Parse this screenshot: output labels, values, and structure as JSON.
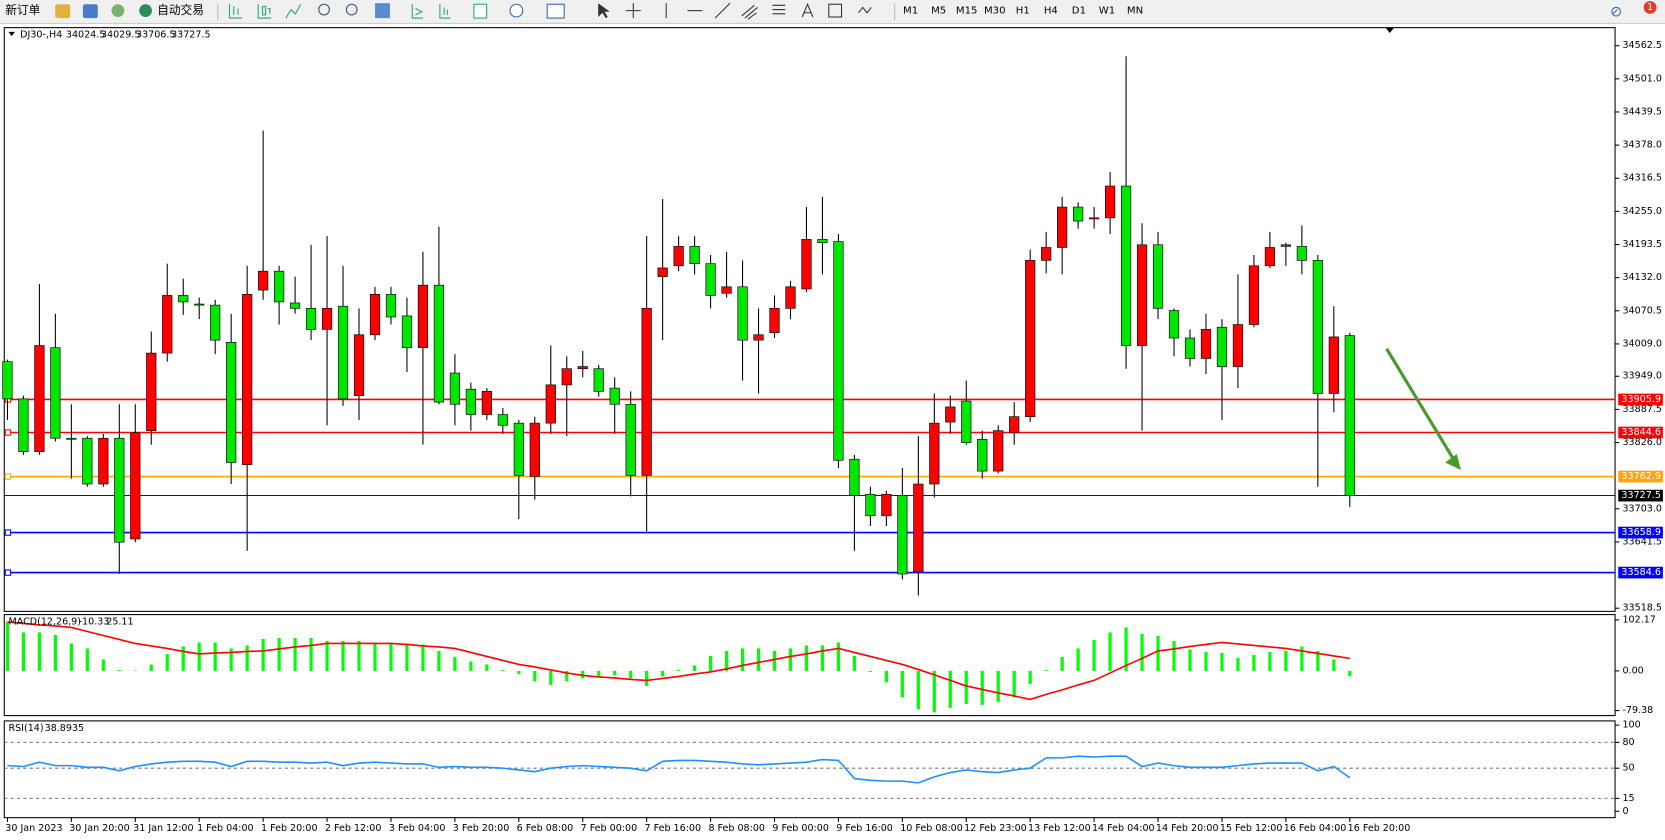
{
  "toolbar": {
    "new_order": "新订单",
    "auto_trade": "自动交易",
    "timeframes": [
      "M1",
      "M5",
      "M15",
      "M30",
      "H1",
      "H4",
      "D1",
      "W1",
      "MN"
    ],
    "notifications": 1
  },
  "chart_data": [
    {
      "type": "candlestick",
      "title": "DJ30-,H4",
      "categories": [
        "30 Jan 2023",
        null,
        null,
        null,
        "30 Jan 20:00",
        null,
        null,
        null,
        "31 Jan 12:00",
        null,
        null,
        null,
        "1 Feb 04:00",
        null,
        null,
        null,
        "1 Feb 20:00",
        null,
        null,
        null,
        "2 Feb 12:00",
        null,
        null,
        null,
        "3 Feb 04:00",
        null,
        null,
        null,
        "3 Feb 20:00",
        null,
        null,
        null,
        "6 Feb 08:00",
        null,
        null,
        null,
        "7 Feb 00:00",
        null,
        null,
        null,
        "7 Feb 16:00",
        null,
        null,
        null,
        "8 Feb 08:00",
        null,
        null,
        null,
        "9 Feb 00:00",
        null,
        null,
        null,
        "9 Feb 16:00",
        null,
        null,
        null,
        "10 Feb 08:00",
        null,
        null,
        null,
        "12 Feb 23:00",
        null,
        null,
        null,
        "13 Feb 12:00",
        null,
        null,
        null,
        "14 Feb 04:00",
        null,
        null,
        null,
        "14 Feb 20:00",
        null,
        null,
        null,
        "15 Feb 12:00",
        null,
        null,
        null,
        "16 Feb 04:00",
        null,
        null,
        null,
        "16 Feb 20:00"
      ],
      "open": [
        33976,
        33907,
        33809,
        34002,
        33834,
        33834,
        33749,
        33834,
        33647,
        33848,
        33992,
        34099,
        34083,
        34081,
        34012,
        33785,
        34109,
        34144,
        34085,
        34075,
        34036,
        34079,
        33913,
        34026,
        34101,
        34061,
        34002,
        34118,
        33955,
        33925,
        33878,
        33878,
        33862,
        33763,
        33862,
        33933,
        33963,
        33963,
        33927,
        33897,
        33765,
        34134,
        34154,
        34190,
        34158,
        34103,
        34115,
        34016,
        34030,
        34075,
        34111,
        34203,
        34199,
        33795,
        33730,
        33690,
        33728,
        33586,
        33749,
        33864,
        33903,
        33832,
        33773,
        33844,
        33874,
        34164,
        34188,
        34263,
        34241,
        34243,
        34302,
        34006,
        34193,
        34071,
        34020,
        33982,
        34040,
        33967,
        34045,
        34154,
        34190,
        34190,
        34164,
        33917,
        34024.5
      ],
      "high": [
        33980,
        33913,
        34120,
        34065,
        33897,
        33838,
        33842,
        33897,
        33897,
        34032,
        34158,
        34130,
        34095,
        34091,
        34065,
        34154,
        34405,
        34154,
        34134,
        34193,
        34209,
        34154,
        34075,
        34115,
        34115,
        34095,
        34180,
        34227,
        33990,
        33937,
        33927,
        33890,
        33868,
        33874,
        34006,
        33986,
        33996,
        33970,
        33947,
        33921,
        34209,
        34278,
        34209,
        34209,
        34174,
        34180,
        34164,
        34075,
        34099,
        34126,
        34263,
        34282,
        34213,
        33803,
        33744,
        33736,
        33779,
        33838,
        33917,
        33913,
        33941,
        33848,
        33858,
        33901,
        34184,
        34217,
        34282,
        34272,
        34263,
        34328,
        34543,
        34233,
        34217,
        34075,
        34036,
        34065,
        34055,
        34138,
        34174,
        34217,
        34197,
        34229,
        34174,
        34079,
        34029.5
      ],
      "low": [
        33868,
        33803,
        33803,
        33828,
        33759,
        33744,
        33744,
        33582,
        33641,
        33822,
        33976,
        34063,
        34055,
        33990,
        33749,
        33625,
        34091,
        34045,
        34065,
        34016,
        33858,
        33894,
        33868,
        34016,
        34045,
        33957,
        33822,
        33897,
        33858,
        33848,
        33868,
        33842,
        33684,
        33720,
        33842,
        33838,
        33947,
        33911,
        33842,
        33726,
        33661,
        34016,
        34144,
        34138,
        34075,
        34095,
        33941,
        33917,
        34020,
        34055,
        34105,
        34138,
        33779,
        33625,
        33671,
        33671,
        33572,
        33542,
        33724,
        33842,
        33822,
        33759,
        33769,
        33822,
        33864,
        34140,
        34138,
        34223,
        34223,
        34213,
        33963,
        33848,
        34055,
        33986,
        33967,
        33953,
        33868,
        33927,
        34040,
        34150,
        34154,
        34138,
        33744,
        33882,
        33706.5
      ],
      "close": [
        33907,
        33809,
        34006,
        33834,
        33832,
        33749,
        33834,
        33641,
        33844,
        33992,
        34099,
        34087,
        34081,
        34016,
        33789,
        34101,
        34144,
        34087,
        34075,
        34036,
        34075,
        33907,
        34026,
        34101,
        34059,
        34002,
        34118,
        33901,
        33897,
        33878,
        33921,
        33858,
        33765,
        33862,
        33933,
        33963,
        33967,
        33921,
        33897,
        33765,
        34075,
        34150,
        34190,
        34158,
        34099,
        34115,
        34016,
        34026,
        34075,
        34115,
        34203,
        34197,
        33793,
        33728,
        33690,
        33730,
        33582,
        33749,
        33862,
        33892,
        33826,
        33773,
        33848,
        33874,
        34164,
        34188,
        34263,
        34237,
        34243,
        34302,
        34006,
        34193,
        34075,
        34020,
        33982,
        34036,
        33967,
        34045,
        34154,
        34188,
        34193,
        34164,
        33917,
        34022,
        33727.5
      ],
      "up_color": "#ff0000",
      "down_color": "#00e600",
      "ylim": [
        33512.6,
        34596.0
      ],
      "yticks": [
        34562.5,
        {
          "value": 34501,
          "label": "34501.0"
        },
        34439.5,
        {
          "value": 34378,
          "label": "34378.0"
        },
        34316.5,
        {
          "value": 34255,
          "label": "34255.0"
        },
        34193.5,
        {
          "value": 34132,
          "label": "34132.0"
        },
        34070.5,
        {
          "value": 34009,
          "label": "34009.0"
        },
        {
          "value": 33949,
          "label": "33949.0"
        },
        33887.5,
        {
          "value": 33826,
          "label": "33826.0"
        },
        {
          "value": 33703,
          "label": "33703.0"
        },
        33641.5,
        33518.5
      ],
      "levels": [
        {
          "value": 33905.9,
          "color": "#ff0000"
        },
        {
          "value": 33844.6,
          "color": "#ff0000"
        },
        {
          "value": 33762.9,
          "color": "#ffa500"
        },
        {
          "value": 33658.9,
          "color": "#0000ff"
        },
        {
          "value": 33584.6,
          "color": "#0000ff"
        }
      ],
      "grid": false
    },
    {
      "type": "macd",
      "title": "MACD(12,26,9)",
      "histogram": [
        98,
        77,
        77,
        72,
        55,
        45,
        23,
        2,
        1,
        13,
        34,
        49,
        57,
        57,
        45,
        51,
        64,
        66,
        66,
        66,
        60,
        60,
        60,
        57,
        55,
        55,
        53,
        40,
        28,
        19,
        13,
        2,
        -6,
        -21,
        -28,
        -21,
        -15,
        -11,
        -9,
        -15,
        -30,
        -11,
        2,
        11,
        30,
        40,
        45,
        45,
        40,
        45,
        51,
        51,
        57,
        30,
        -2,
        -23,
        -53,
        -77,
        -83,
        -74,
        -66,
        -68,
        -62,
        -53,
        -26,
        2,
        28,
        45,
        62,
        77,
        87,
        74,
        70,
        60,
        43,
        38,
        36,
        26,
        32,
        38,
        40,
        49,
        40,
        23,
        -10.33
      ],
      "signal": [
        98,
        95,
        92,
        90,
        87,
        79,
        71,
        63,
        55,
        50,
        45,
        39,
        34,
        36,
        37,
        39,
        40,
        44,
        48,
        51,
        55,
        55,
        55,
        55,
        55,
        53,
        50,
        48,
        45,
        37,
        29,
        21,
        13,
        8,
        2,
        -4,
        -9,
        -12,
        -14,
        -17,
        -19,
        -15,
        -11,
        -6,
        -2,
        4,
        11,
        17,
        23,
        29,
        34,
        40,
        45,
        37,
        29,
        21,
        13,
        3,
        -8,
        -19,
        -30,
        -37,
        -44,
        -50,
        -57,
        -47,
        -38,
        -28,
        -19,
        -4,
        11,
        25,
        40,
        44,
        49,
        53,
        57,
        54,
        51,
        48,
        45,
        40,
        35,
        30,
        25.11
      ],
      "histogram_color": "#00ff00",
      "signal_color": "#ff0000",
      "ylim": [
        -89.4,
        112.8
      ],
      "yticks": [
        102.17,
        {
          "value": 0,
          "label": "0.00"
        },
        -79.38
      ]
    },
    {
      "type": "line",
      "title": "RSI(14)",
      "values": [
        53,
        52,
        57,
        53,
        53,
        51,
        51,
        47,
        52,
        55,
        57,
        58,
        58,
        57,
        52,
        58,
        58,
        57,
        57,
        56,
        57,
        53,
        56,
        57,
        56,
        55,
        55,
        51,
        52,
        51,
        51,
        50,
        48,
        46,
        50,
        52,
        53,
        52,
        51,
        50,
        47,
        58,
        59,
        59,
        58,
        57,
        55,
        54,
        55,
        56,
        57,
        60,
        59,
        38,
        36,
        35,
        35,
        33,
        40,
        45,
        48,
        46,
        45,
        48,
        50,
        62,
        62,
        64,
        63,
        64,
        64,
        52,
        56,
        53,
        51,
        51,
        51,
        53,
        55,
        56,
        56,
        56,
        47,
        52,
        38.8935
      ],
      "color": "#1e90ff",
      "ylim": [
        -7.4,
        104.9
      ],
      "yticks": [
        100,
        80,
        50,
        15,
        0
      ],
      "levels": [
        80,
        50,
        15
      ]
    }
  ]
}
